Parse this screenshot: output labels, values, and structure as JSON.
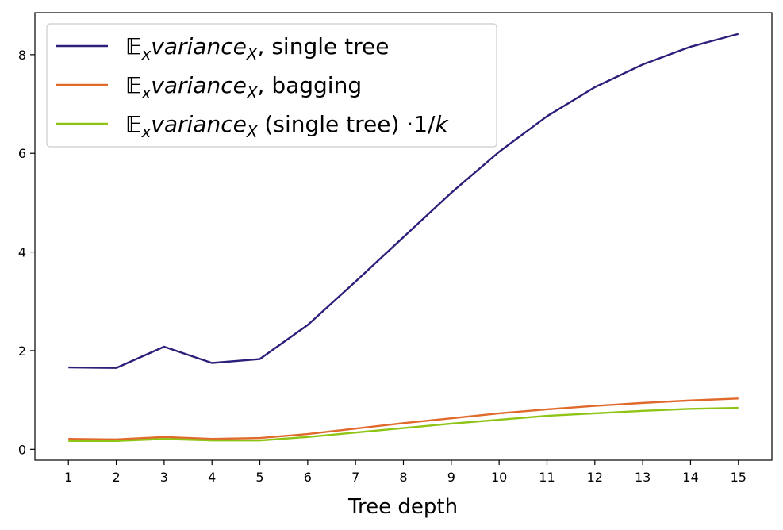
{
  "chart_data": {
    "type": "line",
    "xlabel": "Tree depth",
    "ylabel": "",
    "title": "",
    "x": [
      1,
      2,
      3,
      4,
      5,
      6,
      7,
      8,
      9,
      10,
      11,
      12,
      13,
      14,
      15
    ],
    "xlim": [
      0.3,
      15.7
    ],
    "ylim": [
      -0.22,
      8.85
    ],
    "xticks": [
      "1",
      "2",
      "3",
      "4",
      "5",
      "6",
      "7",
      "8",
      "9",
      "10",
      "11",
      "12",
      "13",
      "14",
      "15"
    ],
    "yticks": [
      "0",
      "2",
      "4",
      "6",
      "8"
    ],
    "grid": false,
    "legend_position": "top-left",
    "series": [
      {
        "name": "𝔼xvarianceX, single tree",
        "legend_prefix": "𝔼",
        "legend_sub1": "x",
        "legend_italic": "variance",
        "legend_sub2": "X",
        "legend_suffix": ", single tree",
        "color": "#2a1f7a",
        "values": [
          1.66,
          1.65,
          2.08,
          1.75,
          1.83,
          2.52,
          3.4,
          4.3,
          5.2,
          6.03,
          6.75,
          7.34,
          7.8,
          8.16,
          8.42
        ]
      },
      {
        "name": "𝔼xvarianceX, bagging",
        "legend_prefix": "𝔼",
        "legend_sub1": "x",
        "legend_italic": "variance",
        "legend_sub2": "X",
        "legend_suffix": ", bagging",
        "color": "#e06a2c",
        "values": [
          0.21,
          0.2,
          0.25,
          0.21,
          0.23,
          0.31,
          0.42,
          0.53,
          0.63,
          0.73,
          0.81,
          0.88,
          0.94,
          0.99,
          1.03
        ]
      },
      {
        "name": "𝔼xvarianceX (single tree) ·1/k",
        "legend_prefix": "𝔼",
        "legend_sub1": "x",
        "legend_italic": "variance",
        "legend_sub2": "X",
        "legend_suffix": " (single tree) ·1/",
        "legend_suffix_italic": "k",
        "color": "#8ec414",
        "values": [
          0.17,
          0.17,
          0.21,
          0.18,
          0.18,
          0.25,
          0.34,
          0.43,
          0.52,
          0.6,
          0.68,
          0.73,
          0.78,
          0.82,
          0.84
        ]
      }
    ]
  }
}
